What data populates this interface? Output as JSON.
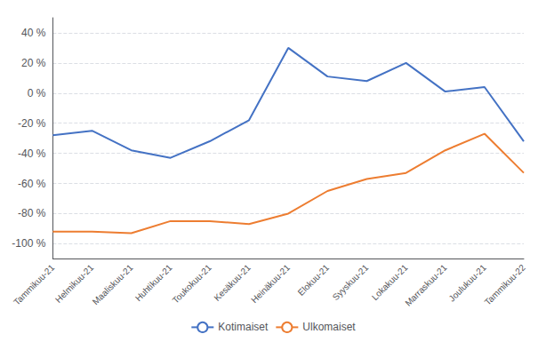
{
  "chart_data": {
    "type": "line",
    "categories": [
      "Tammikuu-21",
      "Helmikuu-21",
      "Maaliskuu-21",
      "Huhtikuu-21",
      "Toukokuu-21",
      "Kesäkuu-21",
      "Heinäkuu-21",
      "Elokuu-21",
      "Syyskuu-21",
      "Lokakuu-21",
      "Marraskuu-21",
      "Joulukuu-21",
      "Tammikuu-22"
    ],
    "series": [
      {
        "name": "Kotimaiset",
        "color": "#4472C4",
        "values": [
          -28,
          -25,
          -38,
          -43,
          -32,
          -18,
          30,
          11,
          8,
          20,
          1,
          4,
          -32
        ]
      },
      {
        "name": "Ulkomaiset",
        "color": "#ED7D31",
        "values": [
          -92,
          -92,
          -93,
          -85,
          -85,
          -87,
          -80,
          -65,
          -57,
          -53,
          -38,
          -27,
          -53
        ]
      }
    ],
    "ylim": [
      -110,
      50
    ],
    "yticks": [
      {
        "value": -100,
        "label": "-100 %"
      },
      {
        "value": -80,
        "label": "-80 %"
      },
      {
        "value": -60,
        "label": "-60 %"
      },
      {
        "value": -40,
        "label": "-40 %"
      },
      {
        "value": -20,
        "label": "-20 %"
      },
      {
        "value": 0,
        "label": "0 %"
      },
      {
        "value": 20,
        "label": "20 %"
      },
      {
        "value": 40,
        "label": "40 %"
      }
    ],
    "grid": true,
    "legend": "bottom"
  }
}
